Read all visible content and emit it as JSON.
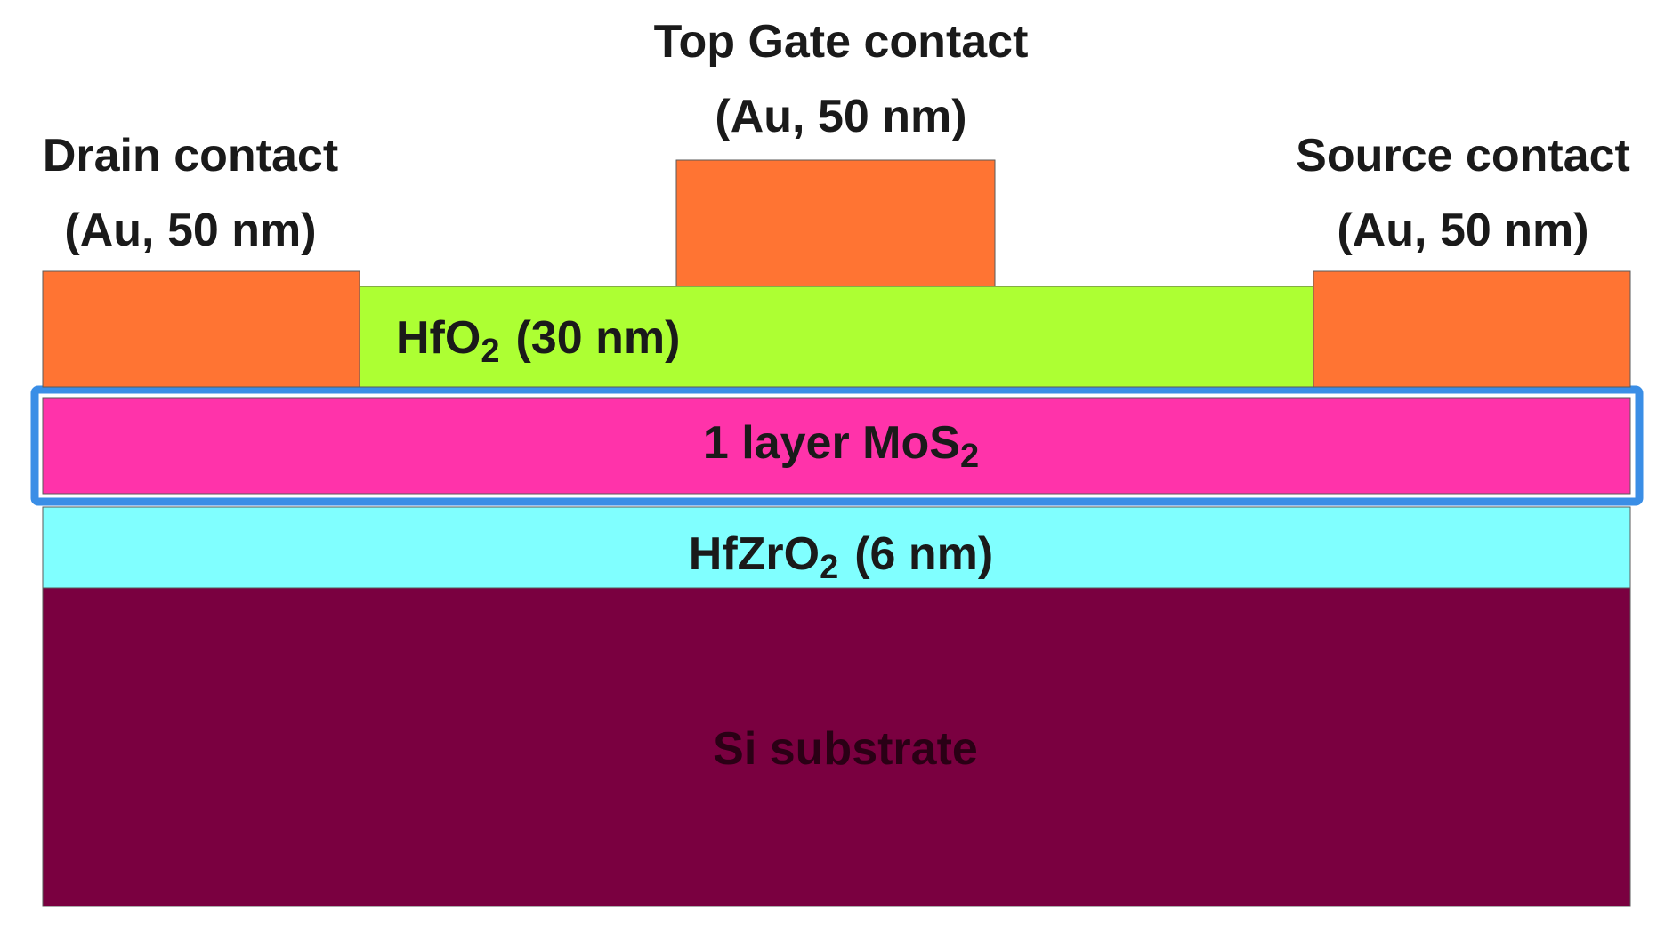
{
  "contacts": {
    "drain": {
      "title": "Drain contact",
      "detail": "(Au, 50 nm)"
    },
    "gate": {
      "title": "Top Gate contact",
      "detail": "(Au, 50 nm)"
    },
    "source": {
      "title": "Source contact",
      "detail": "(Au, 50 nm)"
    }
  },
  "layers": {
    "hfo2": {
      "formula": "HfO",
      "subscript": "2",
      "thickness": "(30 nm)"
    },
    "mos2": {
      "formula": "1 layer MoS",
      "subscript": "2"
    },
    "hfzro2": {
      "formula": "HfZrO",
      "subscript": "2",
      "thickness": "(6 nm)"
    },
    "substrate": {
      "label": "Si substrate"
    }
  }
}
